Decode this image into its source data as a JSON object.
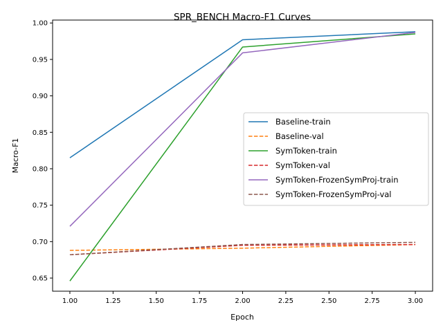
{
  "chart_data": {
    "type": "line",
    "title": "SPR_BENCH Macro-F1 Curves",
    "xlabel": "Epoch",
    "ylabel": "Macro-F1",
    "xlim": [
      0.9,
      3.1
    ],
    "ylim": [
      0.632,
      1.004
    ],
    "x_ticks": [
      "1.00",
      "1.25",
      "1.50",
      "1.75",
      "2.00",
      "2.25",
      "2.50",
      "2.75",
      "3.00"
    ],
    "y_ticks": [
      "0.65",
      "0.70",
      "0.75",
      "0.80",
      "0.85",
      "0.90",
      "0.95",
      "1.00"
    ],
    "x": [
      1,
      2,
      3
    ],
    "legend_position": "center-right",
    "series": [
      {
        "name": "Baseline-train",
        "values": [
          0.815,
          0.977,
          0.988
        ],
        "color": "#1f77b4",
        "style": "solid"
      },
      {
        "name": "Baseline-val",
        "values": [
          0.688,
          0.691,
          0.696
        ],
        "color": "#ff7f0e",
        "style": "dashed"
      },
      {
        "name": "SymToken-train",
        "values": [
          0.646,
          0.967,
          0.985
        ],
        "color": "#2ca02c",
        "style": "solid"
      },
      {
        "name": "SymToken-val",
        "values": [
          0.682,
          0.695,
          0.696
        ],
        "color": "#d62728",
        "style": "dashed"
      },
      {
        "name": "SymToken-FrozenSymProj-train",
        "values": [
          0.721,
          0.959,
          0.987
        ],
        "color": "#9467bd",
        "style": "solid"
      },
      {
        "name": "SymToken-FrozenSymProj-val",
        "values": [
          0.682,
          0.696,
          0.699
        ],
        "color": "#8c564b",
        "style": "dashed"
      }
    ]
  }
}
